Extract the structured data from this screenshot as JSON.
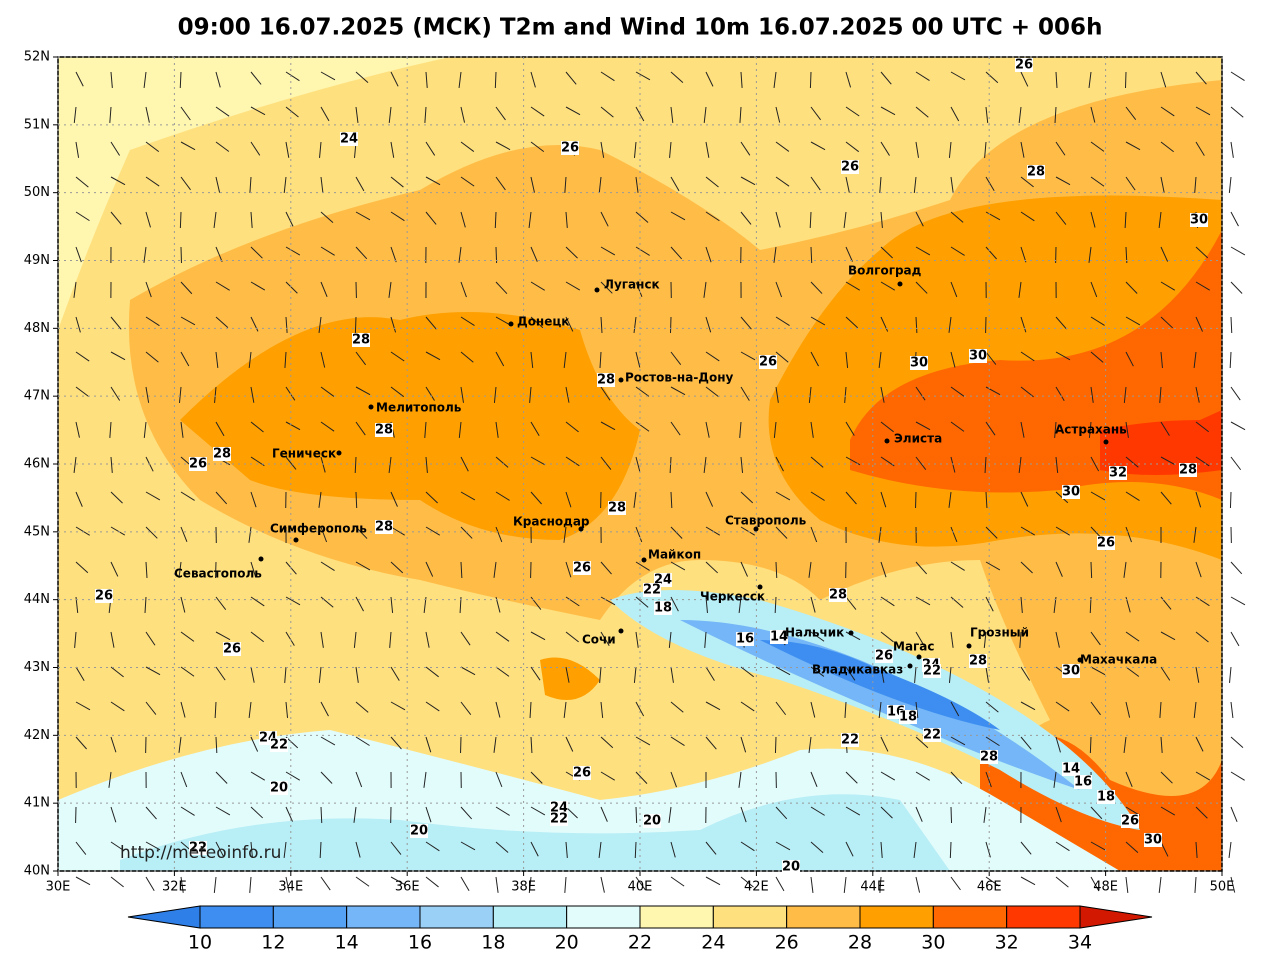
{
  "title": "09:00 16.07.2025 (МСК) T2m and Wind 10m 16.07.2025 00 UTC + 006h",
  "url": "http://meteoinfo.ru",
  "lon_ticks": [
    "30E",
    "32E",
    "34E",
    "36E",
    "38E",
    "40E",
    "42E",
    "44E",
    "46E",
    "48E",
    "50E"
  ],
  "lat_ticks": [
    "40N",
    "41N",
    "42N",
    "43N",
    "44N",
    "45N",
    "46N",
    "47N",
    "48N",
    "49N",
    "50N",
    "51N",
    "52N"
  ],
  "cities": [
    "Волгоград",
    "Луганск",
    "Донецк",
    "Ростов-на-Дону",
    "Мелитополь",
    "Геническ",
    "Элиста",
    "Астрахань",
    "Краснодар",
    "Ставрополь",
    "Симферополь",
    "Севастополь",
    "Майкоп",
    "Черкесск",
    "Сочи",
    "Нальчик",
    "Грозный",
    "Магас",
    "Владикавказ",
    "Махачкала"
  ],
  "contour_labels": [
    26,
    24,
    26,
    26,
    28,
    30,
    28,
    26,
    30,
    30,
    28,
    28,
    28,
    26,
    32,
    28,
    30,
    28,
    28,
    26,
    26,
    24,
    22,
    26,
    28,
    18,
    16,
    14,
    26,
    26,
    24,
    28,
    30,
    22,
    16,
    18,
    22,
    24,
    22,
    22,
    28,
    26,
    14,
    16,
    20,
    18,
    24,
    22,
    20,
    26,
    20,
    30,
    22,
    20
  ],
  "colorbar": {
    "ticks": [
      10,
      12,
      14,
      16,
      18,
      20,
      22,
      24,
      26,
      28,
      30,
      32,
      34
    ],
    "colors": [
      "#2e7fe8",
      "#3d8ef0",
      "#55a2f5",
      "#74b6f7",
      "#9ad0f6",
      "#b8eef6",
      "#e2fcfc",
      "#fff6b0",
      "#ffe07e",
      "#ffbd48",
      "#ffa000",
      "#ff6800",
      "#ff3800",
      "#d21800"
    ]
  }
}
